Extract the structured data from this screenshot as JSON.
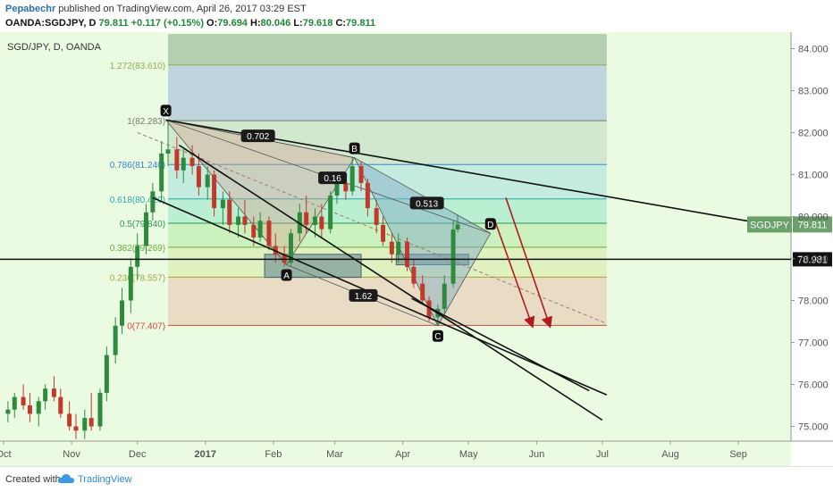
{
  "header": {
    "author": "Pepabechr",
    "published": "published on TradingView.com, April 26, 2017 03:29 EST",
    "symbol_line": "OANDA:SGDJPY, D",
    "last": "79.811",
    "change": "+0.117 (+0.15%)",
    "o_label": "O:",
    "o": "79.694",
    "h_label": "H:",
    "h": "80.046",
    "l_label": "L:",
    "l": "79.618",
    "c_label": "C:",
    "c": "79.811"
  },
  "footer": {
    "created_with": "Created with",
    "brand": "TradingView",
    "logo_icon": "tradingview-cloud-icon"
  },
  "colors": {
    "background": "#eafbe2",
    "up": "#2e8b3e",
    "down": "#c0392b",
    "pattern_blue": "#7fa8c8",
    "pattern_red": "#d89a8a",
    "arrow": "#b01c1c"
  },
  "chart_data": {
    "type": "candlestick",
    "title": "SGD/JPY, D, OANDA",
    "x_ticks": [
      "Oct",
      "Nov",
      "Dec",
      "2017",
      "Feb",
      "Mar",
      "Apr",
      "May",
      "Jun",
      "Jul",
      "Aug",
      "Sep"
    ],
    "y_ticks": [
      "84.000",
      "83.000",
      "82.000",
      "81.000",
      "80.000",
      "79.000",
      "78.000",
      "77.000",
      "76.000",
      "75.000"
    ],
    "ylim": [
      74.65,
      84.35
    ],
    "x_range": [
      "2016-10-01",
      "2017-09-25"
    ],
    "last_price": 79.811,
    "last_label": "SGDJPY",
    "hline": {
      "value": 78.981,
      "label": "78.981"
    },
    "fib_levels": [
      {
        "ratio": "1.272",
        "value": 83.61,
        "label": "1.272(83.610)"
      },
      {
        "ratio": "1",
        "value": 82.283,
        "label": "1(82.283)"
      },
      {
        "ratio": "0.786",
        "value": 81.24,
        "label": "0.786(81.240)"
      },
      {
        "ratio": "0.618",
        "value": 80.42,
        "label": "0.618(80.420)"
      },
      {
        "ratio": "0.5",
        "value": 79.84,
        "label": "0.5(79.840)"
      },
      {
        "ratio": "0.382",
        "value": 79.269,
        "label": "0.382(79.269)"
      },
      {
        "ratio": "0.236",
        "value": 78.557,
        "label": "0.236(78.557)"
      },
      {
        "ratio": "0",
        "value": 77.407,
        "label": "0(77.407)"
      }
    ],
    "pattern_points": [
      {
        "label": "X",
        "date": "2016-12-14",
        "value": 82.3
      },
      {
        "label": "A",
        "date": "2017-02-07",
        "value": 78.85
      },
      {
        "label": "B",
        "date": "2017-03-10",
        "value": 81.4
      },
      {
        "label": "C",
        "date": "2017-04-17",
        "value": 77.4
      },
      {
        "label": "D",
        "date": "2017-05-11",
        "value": 79.6
      }
    ],
    "ratios": [
      {
        "label": "0.702",
        "date": "2017-01-25",
        "value": 81.9
      },
      {
        "label": "0.16",
        "date": "2017-02-28",
        "value": 80.9
      },
      {
        "label": "0.513",
        "date": "2017-04-12",
        "value": 80.3
      },
      {
        "label": "1.62",
        "date": "2017-03-14",
        "value": 78.1
      }
    ],
    "candles": [
      {
        "date": "2016-10-03",
        "o": 75.3,
        "h": 75.6,
        "l": 75.1,
        "c": 75.4
      },
      {
        "date": "2016-10-06",
        "o": 75.4,
        "h": 75.8,
        "l": 75.2,
        "c": 75.7
      },
      {
        "date": "2016-10-10",
        "o": 75.7,
        "h": 76.0,
        "l": 75.4,
        "c": 75.5
      },
      {
        "date": "2016-10-13",
        "o": 75.5,
        "h": 75.8,
        "l": 75.1,
        "c": 75.3
      },
      {
        "date": "2016-10-17",
        "o": 75.3,
        "h": 75.7,
        "l": 75.0,
        "c": 75.6
      },
      {
        "date": "2016-10-20",
        "o": 75.6,
        "h": 76.0,
        "l": 75.4,
        "c": 75.9
      },
      {
        "date": "2016-10-24",
        "o": 75.9,
        "h": 76.2,
        "l": 75.6,
        "c": 75.7
      },
      {
        "date": "2016-10-27",
        "o": 75.7,
        "h": 75.9,
        "l": 75.2,
        "c": 75.3
      },
      {
        "date": "2016-10-31",
        "o": 75.3,
        "h": 75.6,
        "l": 74.9,
        "c": 75.0
      },
      {
        "date": "2016-11-03",
        "o": 75.0,
        "h": 75.3,
        "l": 74.7,
        "c": 74.9
      },
      {
        "date": "2016-11-07",
        "o": 74.9,
        "h": 75.4,
        "l": 74.7,
        "c": 75.2
      },
      {
        "date": "2016-11-10",
        "o": 75.2,
        "h": 75.8,
        "l": 74.9,
        "c": 75.0
      },
      {
        "date": "2016-11-14",
        "o": 75.0,
        "h": 75.9,
        "l": 74.9,
        "c": 75.8
      },
      {
        "date": "2016-11-17",
        "o": 75.8,
        "h": 76.9,
        "l": 75.6,
        "c": 76.7
      },
      {
        "date": "2016-11-21",
        "o": 76.7,
        "h": 77.6,
        "l": 76.5,
        "c": 77.4
      },
      {
        "date": "2016-11-24",
        "o": 77.4,
        "h": 78.3,
        "l": 77.2,
        "c": 78.0
      },
      {
        "date": "2016-11-28",
        "o": 78.0,
        "h": 79.0,
        "l": 77.7,
        "c": 78.8
      },
      {
        "date": "2016-12-01",
        "o": 78.8,
        "h": 79.6,
        "l": 78.5,
        "c": 79.3
      },
      {
        "date": "2016-12-05",
        "o": 79.3,
        "h": 80.3,
        "l": 79.1,
        "c": 80.1
      },
      {
        "date": "2016-12-08",
        "o": 80.1,
        "h": 80.8,
        "l": 79.9,
        "c": 80.6
      },
      {
        "date": "2016-12-12",
        "o": 80.6,
        "h": 81.8,
        "l": 80.4,
        "c": 81.5
      },
      {
        "date": "2016-12-15",
        "o": 81.5,
        "h": 82.3,
        "l": 81.2,
        "c": 81.6
      },
      {
        "date": "2016-12-19",
        "o": 81.6,
        "h": 81.9,
        "l": 80.9,
        "c": 81.1
      },
      {
        "date": "2016-12-22",
        "o": 81.1,
        "h": 81.6,
        "l": 80.8,
        "c": 81.4
      },
      {
        "date": "2016-12-26",
        "o": 81.4,
        "h": 81.7,
        "l": 81.0,
        "c": 81.2
      },
      {
        "date": "2016-12-29",
        "o": 81.2,
        "h": 81.5,
        "l": 80.5,
        "c": 80.7
      },
      {
        "date": "2017-01-02",
        "o": 80.7,
        "h": 81.2,
        "l": 80.4,
        "c": 81.0
      },
      {
        "date": "2017-01-05",
        "o": 81.0,
        "h": 81.1,
        "l": 80.0,
        "c": 80.2
      },
      {
        "date": "2017-01-09",
        "o": 80.2,
        "h": 80.6,
        "l": 79.8,
        "c": 80.4
      },
      {
        "date": "2017-01-12",
        "o": 80.4,
        "h": 80.6,
        "l": 79.6,
        "c": 79.8
      },
      {
        "date": "2017-01-16",
        "o": 79.8,
        "h": 80.2,
        "l": 79.5,
        "c": 80.0
      },
      {
        "date": "2017-01-19",
        "o": 80.0,
        "h": 80.4,
        "l": 79.6,
        "c": 79.8
      },
      {
        "date": "2017-01-23",
        "o": 79.8,
        "h": 80.0,
        "l": 79.3,
        "c": 79.5
      },
      {
        "date": "2017-01-26",
        "o": 79.5,
        "h": 80.1,
        "l": 79.4,
        "c": 79.9
      },
      {
        "date": "2017-01-30",
        "o": 79.9,
        "h": 80.0,
        "l": 79.2,
        "c": 79.3
      },
      {
        "date": "2017-02-02",
        "o": 79.3,
        "h": 79.6,
        "l": 78.9,
        "c": 79.1
      },
      {
        "date": "2017-02-06",
        "o": 79.1,
        "h": 79.3,
        "l": 78.8,
        "c": 78.9
      },
      {
        "date": "2017-02-09",
        "o": 78.9,
        "h": 79.7,
        "l": 78.8,
        "c": 79.6
      },
      {
        "date": "2017-02-13",
        "o": 79.6,
        "h": 80.3,
        "l": 79.4,
        "c": 80.1
      },
      {
        "date": "2017-02-16",
        "o": 80.1,
        "h": 80.5,
        "l": 79.6,
        "c": 79.8
      },
      {
        "date": "2017-02-20",
        "o": 79.8,
        "h": 80.2,
        "l": 79.5,
        "c": 80.0
      },
      {
        "date": "2017-02-23",
        "o": 80.0,
        "h": 80.3,
        "l": 79.5,
        "c": 79.7
      },
      {
        "date": "2017-02-27",
        "o": 79.7,
        "h": 80.6,
        "l": 79.6,
        "c": 80.5
      },
      {
        "date": "2017-03-02",
        "o": 80.5,
        "h": 81.0,
        "l": 80.3,
        "c": 80.8
      },
      {
        "date": "2017-03-06",
        "o": 80.8,
        "h": 81.0,
        "l": 80.4,
        "c": 80.6
      },
      {
        "date": "2017-03-09",
        "o": 80.6,
        "h": 81.4,
        "l": 80.5,
        "c": 81.2
      },
      {
        "date": "2017-03-13",
        "o": 81.2,
        "h": 81.3,
        "l": 80.6,
        "c": 80.8
      },
      {
        "date": "2017-03-16",
        "o": 80.8,
        "h": 80.9,
        "l": 80.0,
        "c": 80.2
      },
      {
        "date": "2017-03-20",
        "o": 80.2,
        "h": 80.4,
        "l": 79.6,
        "c": 79.8
      },
      {
        "date": "2017-03-23",
        "o": 79.8,
        "h": 80.0,
        "l": 79.3,
        "c": 79.4
      },
      {
        "date": "2017-03-27",
        "o": 79.4,
        "h": 79.6,
        "l": 78.9,
        "c": 79.1
      },
      {
        "date": "2017-03-30",
        "o": 79.1,
        "h": 79.6,
        "l": 78.9,
        "c": 79.4
      },
      {
        "date": "2017-04-03",
        "o": 79.4,
        "h": 79.5,
        "l": 78.7,
        "c": 78.8
      },
      {
        "date": "2017-04-06",
        "o": 78.8,
        "h": 79.0,
        "l": 78.3,
        "c": 78.4
      },
      {
        "date": "2017-04-10",
        "o": 78.4,
        "h": 78.6,
        "l": 77.9,
        "c": 78.0
      },
      {
        "date": "2017-04-13",
        "o": 78.0,
        "h": 78.1,
        "l": 77.5,
        "c": 77.6
      },
      {
        "date": "2017-04-17",
        "o": 77.6,
        "h": 77.9,
        "l": 77.4,
        "c": 77.8
      },
      {
        "date": "2017-04-20",
        "o": 77.8,
        "h": 78.6,
        "l": 77.7,
        "c": 78.4
      },
      {
        "date": "2017-04-24",
        "o": 78.4,
        "h": 79.9,
        "l": 78.3,
        "c": 79.69
      },
      {
        "date": "2017-04-26",
        "o": 79.694,
        "h": 80.046,
        "l": 79.618,
        "c": 79.811
      }
    ]
  }
}
